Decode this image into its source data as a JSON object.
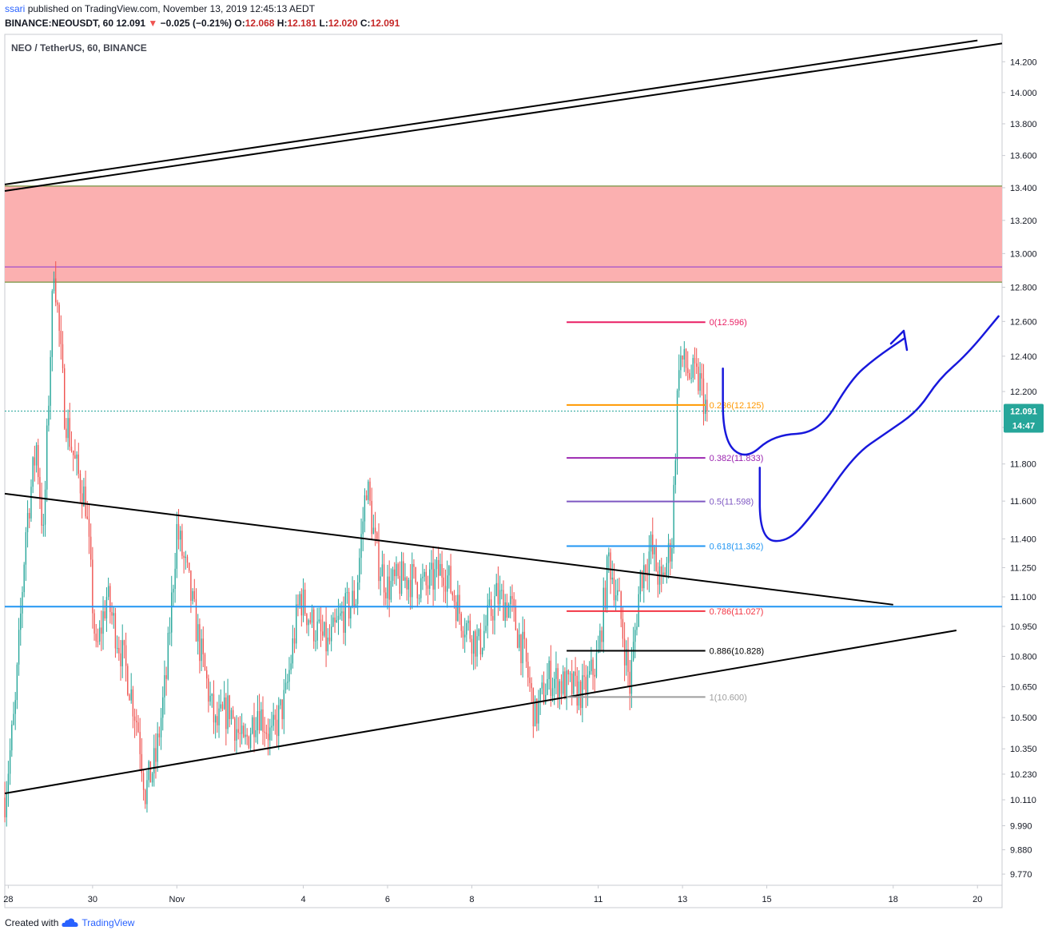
{
  "header": {
    "author": "ssari",
    "published": "published on TradingView.com, November 13, 2019 12:45:13 AEDT",
    "symbol": "BINANCE:NEOUSDT, 60",
    "last": "12.091",
    "change": "−0.025 (−0.21%)",
    "open_label": "O:",
    "open": "12.068",
    "high_label": "H:",
    "high": "12.181",
    "low_label": "L:",
    "low": "12.020",
    "close_label": "C:",
    "close": "12.091"
  },
  "footer": {
    "created_with": "Created with",
    "brand": "TradingView"
  },
  "colors": {
    "up": "#26a69a",
    "down": "#ef5350",
    "zone": "#fbb0b0",
    "zone_edge": "#8aa05a",
    "zone_mid": "#b05fc7",
    "support": "#2196f3",
    "drawing": "#1818dc",
    "axis_text": "#131722",
    "price_tag": "#26a69a"
  },
  "chart_data": {
    "type": "candlestick",
    "title": "NEO / TetherUS, 60, BINANCE",
    "interval_minutes": 60,
    "x_axis": {
      "start": "2019-10-27T22:00",
      "end": "2019-11-20T14:00",
      "ticks": [
        {
          "t": "2019-10-28T00:00",
          "label": "28"
        },
        {
          "t": "2019-10-30T00:00",
          "label": "30"
        },
        {
          "t": "2019-11-01T00:00",
          "label": "Nov"
        },
        {
          "t": "2019-11-04T00:00",
          "label": "4"
        },
        {
          "t": "2019-11-06T00:00",
          "label": "6"
        },
        {
          "t": "2019-11-08T00:00",
          "label": "8"
        },
        {
          "t": "2019-11-11T00:00",
          "label": "11"
        },
        {
          "t": "2019-11-13T00:00",
          "label": "13"
        },
        {
          "t": "2019-11-15T00:00",
          "label": "15"
        },
        {
          "t": "2019-11-18T00:00",
          "label": "18"
        },
        {
          "t": "2019-11-20T00:00",
          "label": "20"
        }
      ]
    },
    "y_axis": {
      "scale": "log",
      "range": [
        9.72,
        14.38
      ],
      "ticks": [
        "14.200",
        "14.000",
        "13.800",
        "13.600",
        "13.400",
        "13.200",
        "13.000",
        "12.800",
        "12.600",
        "12.400",
        "12.200",
        "12.000",
        "11.800",
        "11.600",
        "11.400",
        "11.250",
        "11.100",
        "10.950",
        "10.800",
        "10.650",
        "10.500",
        "10.350",
        "10.230",
        "10.110",
        "9.990",
        "9.880",
        "9.770"
      ]
    },
    "last_price": {
      "value": 12.091,
      "label": "12.091",
      "countdown": "14:47"
    },
    "price_path": [
      {
        "t": "2019-10-27T22:00",
        "p": 10.12
      },
      {
        "t": "2019-10-28T04:00",
        "p": 10.55
      },
      {
        "t": "2019-10-28T10:00",
        "p": 11.45
      },
      {
        "t": "2019-10-28T16:00",
        "p": 11.9
      },
      {
        "t": "2019-10-28T20:00",
        "p": 11.4
      },
      {
        "t": "2019-10-29T02:00",
        "p": 12.95
      },
      {
        "t": "2019-10-29T08:00",
        "p": 12.1
      },
      {
        "t": "2019-10-29T14:00",
        "p": 11.8
      },
      {
        "t": "2019-10-29T20:00",
        "p": 11.6
      },
      {
        "t": "2019-10-30T02:00",
        "p": 10.8
      },
      {
        "t": "2019-10-30T08:00",
        "p": 11.1
      },
      {
        "t": "2019-10-30T14:00",
        "p": 10.9
      },
      {
        "t": "2019-10-30T20:00",
        "p": 10.7
      },
      {
        "t": "2019-10-31T02:00",
        "p": 10.45
      },
      {
        "t": "2019-10-31T06:00",
        "p": 10.15
      },
      {
        "t": "2019-10-31T12:00",
        "p": 10.3
      },
      {
        "t": "2019-10-31T18:00",
        "p": 10.7
      },
      {
        "t": "2019-11-01T00:00",
        "p": 11.45
      },
      {
        "t": "2019-11-01T06:00",
        "p": 11.2
      },
      {
        "t": "2019-11-01T14:00",
        "p": 10.8
      },
      {
        "t": "2019-11-01T22:00",
        "p": 10.45
      },
      {
        "t": "2019-11-02T06:00",
        "p": 10.55
      },
      {
        "t": "2019-11-02T14:00",
        "p": 10.35
      },
      {
        "t": "2019-11-02T22:00",
        "p": 10.55
      },
      {
        "t": "2019-11-03T06:00",
        "p": 10.4
      },
      {
        "t": "2019-11-03T14:00",
        "p": 10.6
      },
      {
        "t": "2019-11-03T22:00",
        "p": 11.1
      },
      {
        "t": "2019-11-04T06:00",
        "p": 10.95
      },
      {
        "t": "2019-11-04T14:00",
        "p": 10.85
      },
      {
        "t": "2019-11-04T22:00",
        "p": 11.0
      },
      {
        "t": "2019-11-05T06:00",
        "p": 11.1
      },
      {
        "t": "2019-11-05T12:00",
        "p": 11.7
      },
      {
        "t": "2019-11-05T18:00",
        "p": 11.3
      },
      {
        "t": "2019-11-06T00:00",
        "p": 11.15
      },
      {
        "t": "2019-11-06T12:00",
        "p": 11.2
      },
      {
        "t": "2019-11-06T22:00",
        "p": 11.15
      },
      {
        "t": "2019-11-07T08:00",
        "p": 11.25
      },
      {
        "t": "2019-11-07T18:00",
        "p": 11.0
      },
      {
        "t": "2019-11-08T04:00",
        "p": 10.85
      },
      {
        "t": "2019-11-08T14:00",
        "p": 11.1
      },
      {
        "t": "2019-11-08T22:00",
        "p": 11.05
      },
      {
        "t": "2019-11-09T06:00",
        "p": 10.8
      },
      {
        "t": "2019-11-09T12:00",
        "p": 10.5
      },
      {
        "t": "2019-11-09T20:00",
        "p": 10.7
      },
      {
        "t": "2019-11-10T06:00",
        "p": 10.65
      },
      {
        "t": "2019-11-10T16:00",
        "p": 10.62
      },
      {
        "t": "2019-11-11T00:00",
        "p": 10.8
      },
      {
        "t": "2019-11-11T06:00",
        "p": 11.3
      },
      {
        "t": "2019-11-11T12:00",
        "p": 11.05
      },
      {
        "t": "2019-11-11T18:00",
        "p": 10.65
      },
      {
        "t": "2019-11-12T00:00",
        "p": 11.2
      },
      {
        "t": "2019-11-12T06:00",
        "p": 11.35
      },
      {
        "t": "2019-11-12T12:00",
        "p": 11.15
      },
      {
        "t": "2019-11-12T18:00",
        "p": 11.4
      },
      {
        "t": "2019-11-12T22:00",
        "p": 12.4
      },
      {
        "t": "2019-11-13T04:00",
        "p": 12.3
      },
      {
        "t": "2019-11-13T10:00",
        "p": 12.25
      },
      {
        "t": "2019-11-13T14:00",
        "p": 12.09
      }
    ],
    "fibonacci": {
      "t_start": "2019-11-10T06:00",
      "t_end": "2019-11-13T13:00",
      "levels": [
        {
          "label": "0(12.596)",
          "value": 12.596,
          "color": "#e91e63"
        },
        {
          "label": "0.236(12.125)",
          "value": 12.125,
          "color": "#ff9800"
        },
        {
          "label": "0.382(11.833)",
          "value": 11.833,
          "color": "#9c27b0"
        },
        {
          "label": "0.5(11.598)",
          "value": 11.598,
          "color": "#7e57c2"
        },
        {
          "label": "0.618(11.362)",
          "value": 11.362,
          "color": "#2196f3"
        },
        {
          "label": "0.786(11.027)",
          "value": 11.027,
          "color": "#f23645"
        },
        {
          "label": "0.886(10.828)",
          "value": 10.828,
          "color": "#000000"
        },
        {
          "label": "1(10.600)",
          "value": 10.6,
          "color": "#9e9e9e"
        }
      ]
    },
    "resistance_zone": {
      "top": 13.41,
      "bottom": 12.83,
      "mid": 12.92
    },
    "horizontal_support": 11.05,
    "trendlines": [
      {
        "name": "upper-channel-a",
        "from": {
          "t": "2019-10-27T22:00",
          "p": 13.38
        },
        "to": {
          "t": "2019-11-20T14:00",
          "p": 14.32
        }
      },
      {
        "name": "upper-channel-b",
        "from": {
          "t": "2019-10-27T22:00",
          "p": 13.42
        },
        "to": {
          "t": "2019-11-20T00:00",
          "p": 14.34
        }
      },
      {
        "name": "descending-resistance",
        "from": {
          "t": "2019-10-27T22:00",
          "p": 11.64
        },
        "to": {
          "t": "2019-11-18T00:00",
          "p": 11.06
        }
      },
      {
        "name": "ascending-support",
        "from": {
          "t": "2019-10-27T22:00",
          "p": 10.14
        },
        "to": {
          "t": "2019-11-19T12:00",
          "p": 10.93
        }
      }
    ],
    "drawings": [
      {
        "name": "projection-path-short",
        "arrow": true,
        "points": [
          {
            "t": "2019-11-13T23:00",
            "p": 12.33
          },
          {
            "t": "2019-11-13T23:00",
            "p": 11.93
          },
          {
            "t": "2019-11-14T12:00",
            "p": 11.82
          },
          {
            "t": "2019-11-15T04:00",
            "p": 11.96
          },
          {
            "t": "2019-11-16T06:00",
            "p": 11.97
          },
          {
            "t": "2019-11-17T00:00",
            "p": 12.27
          },
          {
            "t": "2019-11-17T14:00",
            "p": 12.39
          },
          {
            "t": "2019-11-18T06:00",
            "p": 12.5
          }
        ]
      },
      {
        "name": "projection-path-long",
        "arrow": false,
        "points": [
          {
            "t": "2019-11-14T20:00",
            "p": 11.78
          },
          {
            "t": "2019-11-14T20:00",
            "p": 11.4
          },
          {
            "t": "2019-11-15T12:00",
            "p": 11.38
          },
          {
            "t": "2019-11-16T04:00",
            "p": 11.55
          },
          {
            "t": "2019-11-17T02:00",
            "p": 11.85
          },
          {
            "t": "2019-11-17T20:00",
            "p": 11.97
          },
          {
            "t": "2019-11-18T14:00",
            "p": 12.09
          },
          {
            "t": "2019-11-19T02:00",
            "p": 12.27
          },
          {
            "t": "2019-11-19T18:00",
            "p": 12.41
          },
          {
            "t": "2019-11-20T12:00",
            "p": 12.63
          }
        ]
      }
    ]
  }
}
